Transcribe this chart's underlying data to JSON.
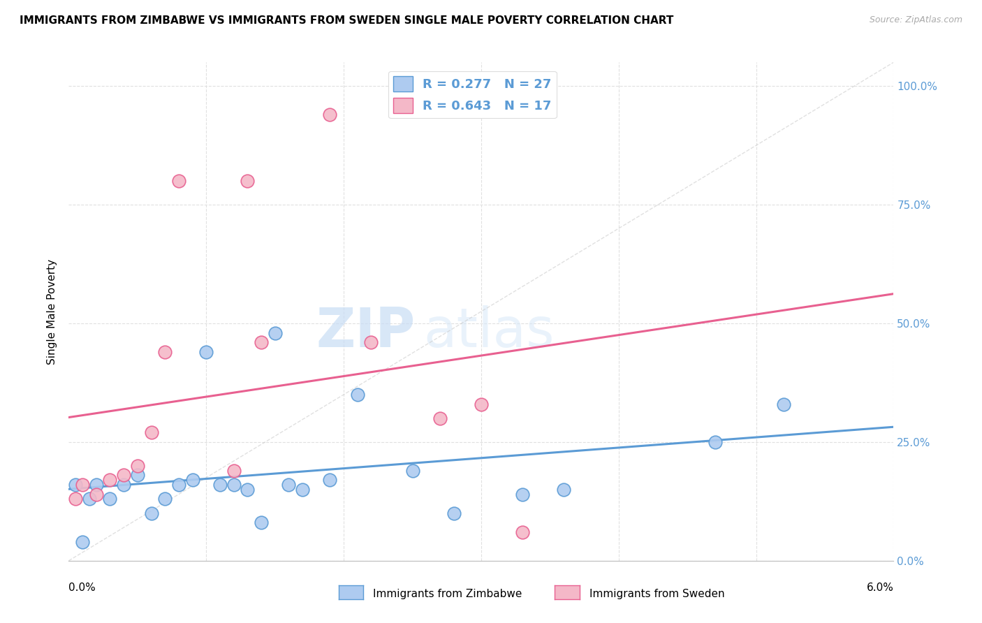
{
  "title": "IMMIGRANTS FROM ZIMBABWE VS IMMIGRANTS FROM SWEDEN SINGLE MALE POVERTY CORRELATION CHART",
  "source": "Source: ZipAtlas.com",
  "ylabel": "Single Male Poverty",
  "ylabel_right_ticks": [
    "100.0%",
    "75.0%",
    "50.0%",
    "25.0%",
    "0.0%"
  ],
  "legend_zimbabwe": "Immigrants from Zimbabwe",
  "legend_sweden": "Immigrants from Sweden",
  "R_zimbabwe": "0.277",
  "N_zimbabwe": "27",
  "R_sweden": "0.643",
  "N_sweden": "17",
  "color_zimbabwe": "#aecbf0",
  "color_sweden": "#f4b8c8",
  "line_color_zimbabwe": "#5b9bd5",
  "line_color_sweden": "#e86090",
  "line_color_diagonal": "#cccccc",
  "background_color": "#ffffff",
  "grid_color": "#e0e0e0",
  "watermark_zip": "ZIP",
  "watermark_atlas": "atlas",
  "zimbabwe_x": [
    0.0005,
    0.001,
    0.0015,
    0.002,
    0.003,
    0.004,
    0.005,
    0.006,
    0.007,
    0.008,
    0.009,
    0.01,
    0.011,
    0.012,
    0.013,
    0.014,
    0.015,
    0.016,
    0.017,
    0.019,
    0.021,
    0.025,
    0.028,
    0.033,
    0.036,
    0.047,
    0.052
  ],
  "zimbabwe_y": [
    0.16,
    0.04,
    0.13,
    0.16,
    0.13,
    0.16,
    0.18,
    0.1,
    0.13,
    0.16,
    0.17,
    0.44,
    0.16,
    0.16,
    0.15,
    0.08,
    0.48,
    0.16,
    0.15,
    0.17,
    0.35,
    0.19,
    0.1,
    0.14,
    0.15,
    0.25,
    0.33
  ],
  "sweden_x": [
    0.0005,
    0.001,
    0.002,
    0.003,
    0.004,
    0.005,
    0.006,
    0.007,
    0.008,
    0.012,
    0.013,
    0.014,
    0.019,
    0.022,
    0.027,
    0.03,
    0.033
  ],
  "sweden_y": [
    0.13,
    0.16,
    0.14,
    0.17,
    0.18,
    0.2,
    0.27,
    0.44,
    0.8,
    0.19,
    0.8,
    0.46,
    0.94,
    0.46,
    0.3,
    0.33,
    0.06
  ],
  "xlim": [
    0.0,
    0.06
  ],
  "ylim": [
    0.0,
    1.05
  ],
  "xticks": [
    0.0,
    0.01,
    0.02,
    0.03,
    0.04,
    0.05,
    0.06
  ],
  "yticks": [
    0.0,
    0.25,
    0.5,
    0.75,
    1.0
  ]
}
